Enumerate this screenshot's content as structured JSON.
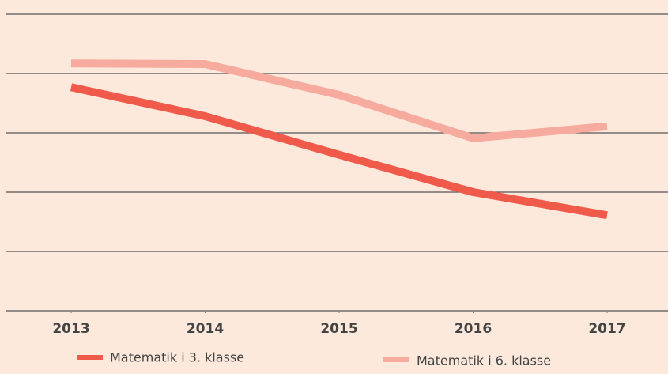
{
  "chart_data": {
    "type": "line",
    "categories": [
      "2013",
      "2014",
      "2015",
      "2016",
      "2017"
    ],
    "series": [
      {
        "name": "Matematik i 3. klasse",
        "color": "#f05a4a",
        "values": [
          3.77,
          3.28,
          2.63,
          2.0,
          1.61
        ]
      },
      {
        "name": "Matematik i 6. klasse",
        "color": "#f7aa9e",
        "values": [
          4.17,
          4.16,
          3.64,
          2.91,
          3.11
        ]
      }
    ],
    "ylim": [
      0,
      5
    ],
    "yticks": [
      0,
      1,
      2,
      3,
      4,
      5
    ],
    "grid": true
  }
}
